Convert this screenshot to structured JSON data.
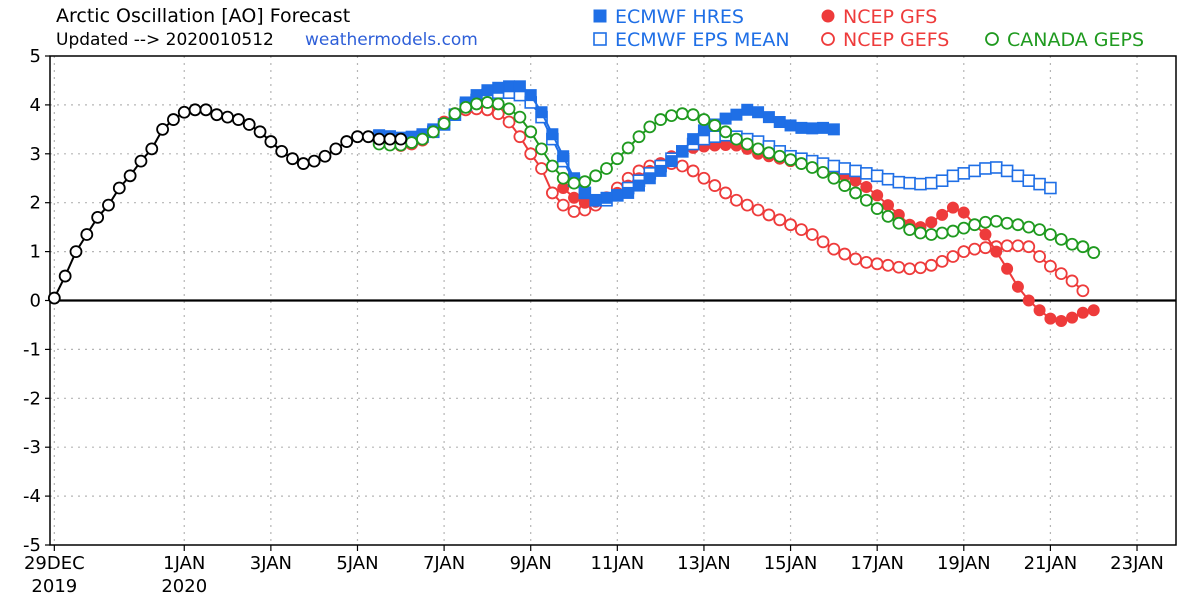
{
  "colors": {
    "ecmwf": "#1f6fe6",
    "ncep": "#ee3b3b",
    "canada": "#1f9a1f",
    "analysis": "#000000",
    "site": "#2e5fd8"
  },
  "chart_data": {
    "type": "line",
    "title": "Arctic Oscillation [AO] Forecast",
    "subtitle": "Updated --> 2020010512",
    "credit": "weathermodels.com",
    "xlabel": "",
    "ylabel": "",
    "x_unit": "days from 29 DEC 2019",
    "xlim": [
      -0.1,
      25.9
    ],
    "ylim": [
      -5,
      5
    ],
    "grid": true,
    "legend_position": "top",
    "y_ticks": [
      "5",
      "4",
      "3",
      "2",
      "1",
      "0",
      "-1",
      "-2",
      "-3",
      "-4",
      "-5"
    ],
    "x_ticks": [
      {
        "x": 0,
        "label": "29DEC",
        "label2": "2019"
      },
      {
        "x": 3,
        "label": "1JAN",
        "label2": "2020"
      },
      {
        "x": 5,
        "label": "3JAN",
        "label2": ""
      },
      {
        "x": 7,
        "label": "5JAN",
        "label2": ""
      },
      {
        "x": 9,
        "label": "7JAN",
        "label2": ""
      },
      {
        "x": 11,
        "label": "9JAN",
        "label2": ""
      },
      {
        "x": 13,
        "label": "11JAN",
        "label2": ""
      },
      {
        "x": 15,
        "label": "13JAN",
        "label2": ""
      },
      {
        "x": 17,
        "label": "15JAN",
        "label2": ""
      },
      {
        "x": 19,
        "label": "17JAN",
        "label2": ""
      },
      {
        "x": 21,
        "label": "19JAN",
        "label2": ""
      },
      {
        "x": 23,
        "label": "21JAN",
        "label2": ""
      },
      {
        "x": 25,
        "label": "23JAN",
        "label2": ""
      }
    ],
    "series": [
      {
        "name": "",
        "marker": "circle-open",
        "color": "#000000",
        "x0": 0,
        "values": [
          0.05,
          0.5,
          1.0,
          1.35,
          1.7,
          1.95,
          2.3,
          2.55,
          2.85,
          3.1,
          3.5,
          3.7,
          3.85,
          3.9,
          3.9,
          3.8,
          3.75,
          3.7,
          3.6,
          3.45,
          3.25,
          3.05,
          2.9,
          2.8,
          2.85,
          2.95,
          3.1,
          3.25,
          3.35,
          3.35,
          3.3,
          3.3,
          3.3
        ]
      },
      {
        "name": "ECMWF HRES",
        "marker": "square-filled",
        "color": "#1f6fe6",
        "x0": 7.5,
        "values": [
          3.38,
          3.36,
          3.33,
          3.35,
          3.4,
          3.5,
          3.6,
          3.8,
          4.05,
          4.2,
          4.3,
          4.35,
          4.38,
          4.38,
          4.2,
          3.85,
          3.4,
          2.95,
          2.5,
          2.2,
          2.05,
          2.1,
          2.15,
          2.2,
          2.35,
          2.5,
          2.65,
          2.85,
          3.05,
          3.3,
          3.48,
          3.6,
          3.72,
          3.8,
          3.9,
          3.85,
          3.75,
          3.65,
          3.58,
          3.53,
          3.52,
          3.53,
          3.5
        ]
      },
      {
        "name": "ECMWF EPS MEAN",
        "marker": "square-open",
        "color": "#1f6fe6",
        "x0": 7.5,
        "values": [
          3.35,
          3.32,
          3.3,
          3.3,
          3.35,
          3.45,
          3.6,
          3.8,
          4.0,
          4.1,
          4.2,
          4.25,
          4.25,
          4.2,
          4.05,
          3.75,
          3.3,
          2.85,
          2.45,
          2.2,
          2.05,
          2.05,
          2.15,
          2.3,
          2.45,
          2.6,
          2.75,
          2.9,
          3.05,
          3.2,
          3.3,
          3.35,
          3.38,
          3.35,
          3.3,
          3.25,
          3.15,
          3.05,
          2.95,
          2.9,
          2.85,
          2.8,
          2.75,
          2.7,
          2.65,
          2.6,
          2.55,
          2.48,
          2.42,
          2.4,
          2.38,
          2.4,
          2.45,
          2.55,
          2.6,
          2.65,
          2.7,
          2.72,
          2.65,
          2.55,
          2.45,
          2.38,
          2.3
        ]
      },
      {
        "name": "NCEP GFS",
        "marker": "circle-filled",
        "color": "#ee3b3b",
        "x0": 11.75,
        "values": [
          2.3,
          2.1,
          2.0,
          2.02,
          2.1,
          2.2,
          2.35,
          2.5,
          2.65,
          2.8,
          2.95,
          3.05,
          3.12,
          3.15,
          3.17,
          3.18,
          3.17,
          3.1,
          3.0,
          2.95,
          2.9,
          2.85,
          2.8,
          2.75,
          2.7,
          2.62,
          2.55,
          2.45,
          2.32,
          2.15,
          1.95,
          1.75,
          1.55,
          1.5,
          1.6,
          1.75,
          1.9,
          1.8,
          1.55,
          1.35,
          1.0,
          0.65,
          0.28,
          0.0,
          -0.2,
          -0.37,
          -0.42,
          -0.35,
          -0.25,
          -0.2
        ]
      },
      {
        "name": "NCEP GEFS",
        "marker": "circle-open",
        "color": "#ee3b3b",
        "x0": 7.5,
        "values": [
          3.25,
          3.2,
          3.17,
          3.2,
          3.28,
          3.45,
          3.65,
          3.82,
          3.9,
          3.92,
          3.9,
          3.82,
          3.65,
          3.35,
          3.0,
          2.7,
          2.2,
          1.95,
          1.82,
          1.85,
          1.95,
          2.1,
          2.3,
          2.5,
          2.65,
          2.75,
          2.8,
          2.8,
          2.75,
          2.65,
          2.5,
          2.35,
          2.2,
          2.05,
          1.95,
          1.85,
          1.75,
          1.65,
          1.55,
          1.45,
          1.35,
          1.2,
          1.05,
          0.95,
          0.85,
          0.78,
          0.75,
          0.72,
          0.68,
          0.65,
          0.67,
          0.72,
          0.8,
          0.9,
          1.0,
          1.05,
          1.08,
          1.1,
          1.12,
          1.12,
          1.1,
          0.9,
          0.7,
          0.55,
          0.4,
          0.2
        ]
      },
      {
        "name": "CANADA GEPS",
        "marker": "circle-open",
        "color": "#1f9a1f",
        "x0": 7.5,
        "values": [
          3.2,
          3.18,
          3.18,
          3.23,
          3.3,
          3.45,
          3.62,
          3.82,
          3.95,
          4.02,
          4.05,
          4.02,
          3.92,
          3.75,
          3.45,
          3.1,
          2.75,
          2.5,
          2.4,
          2.43,
          2.55,
          2.7,
          2.9,
          3.12,
          3.35,
          3.55,
          3.7,
          3.78,
          3.82,
          3.8,
          3.7,
          3.58,
          3.45,
          3.3,
          3.2,
          3.1,
          3.02,
          2.95,
          2.88,
          2.8,
          2.72,
          2.62,
          2.5,
          2.35,
          2.2,
          2.05,
          1.88,
          1.72,
          1.58,
          1.45,
          1.38,
          1.35,
          1.38,
          1.42,
          1.48,
          1.55,
          1.6,
          1.62,
          1.58,
          1.55,
          1.5,
          1.45,
          1.35,
          1.25,
          1.15,
          1.1,
          0.98
        ]
      }
    ]
  },
  "legend": [
    {
      "label": "ECMWF HRES",
      "marker": "square-filled",
      "color": "#1f6fe6"
    },
    {
      "label": "ECMWF EPS MEAN",
      "marker": "square-open",
      "color": "#1f6fe6"
    },
    {
      "label": "NCEP GFS",
      "marker": "circle-filled",
      "color": "#ee3b3b"
    },
    {
      "label": "NCEP GEFS",
      "marker": "circle-open",
      "color": "#ee3b3b"
    },
    {
      "label": "CANADA GEPS",
      "marker": "circle-open",
      "color": "#1f9a1f"
    }
  ]
}
